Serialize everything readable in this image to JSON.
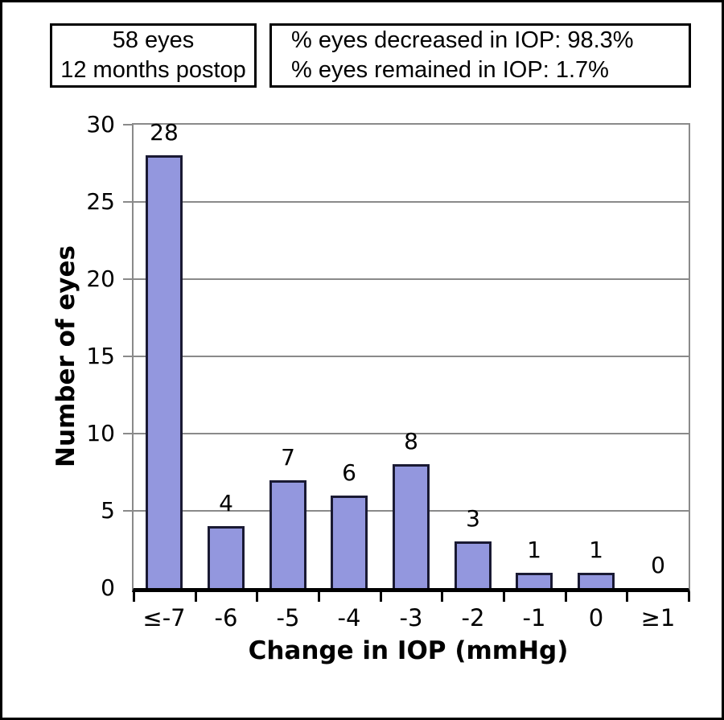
{
  "header": {
    "box1": {
      "line1": "58 eyes",
      "line2": "12 months postop"
    },
    "box2": {
      "line1": "% eyes decreased in IOP: 98.3%",
      "line2": "% eyes remained in IOP: 1.7%"
    }
  },
  "chart_data": {
    "type": "bar",
    "categories": [
      "≤-7",
      "-6",
      "-5",
      "-4",
      "-3",
      "-2",
      "-1",
      "0",
      "≥1"
    ],
    "values": [
      28,
      4,
      7,
      6,
      8,
      3,
      1,
      1,
      0
    ],
    "title": "",
    "xlabel": "Change in IOP (mmHg)",
    "ylabel": "Number of eyes",
    "ylim": [
      0,
      30
    ],
    "ytick_step": 5,
    "grid": "horizontal",
    "bar_value_labels": true,
    "legend": "none",
    "colors": {
      "bar_fill": "#9397de",
      "bar_border": "#1a1a33",
      "gridline": "#8a8a8a",
      "axis_line": "#000000",
      "text": "#000000",
      "background": "#ffffff"
    }
  }
}
